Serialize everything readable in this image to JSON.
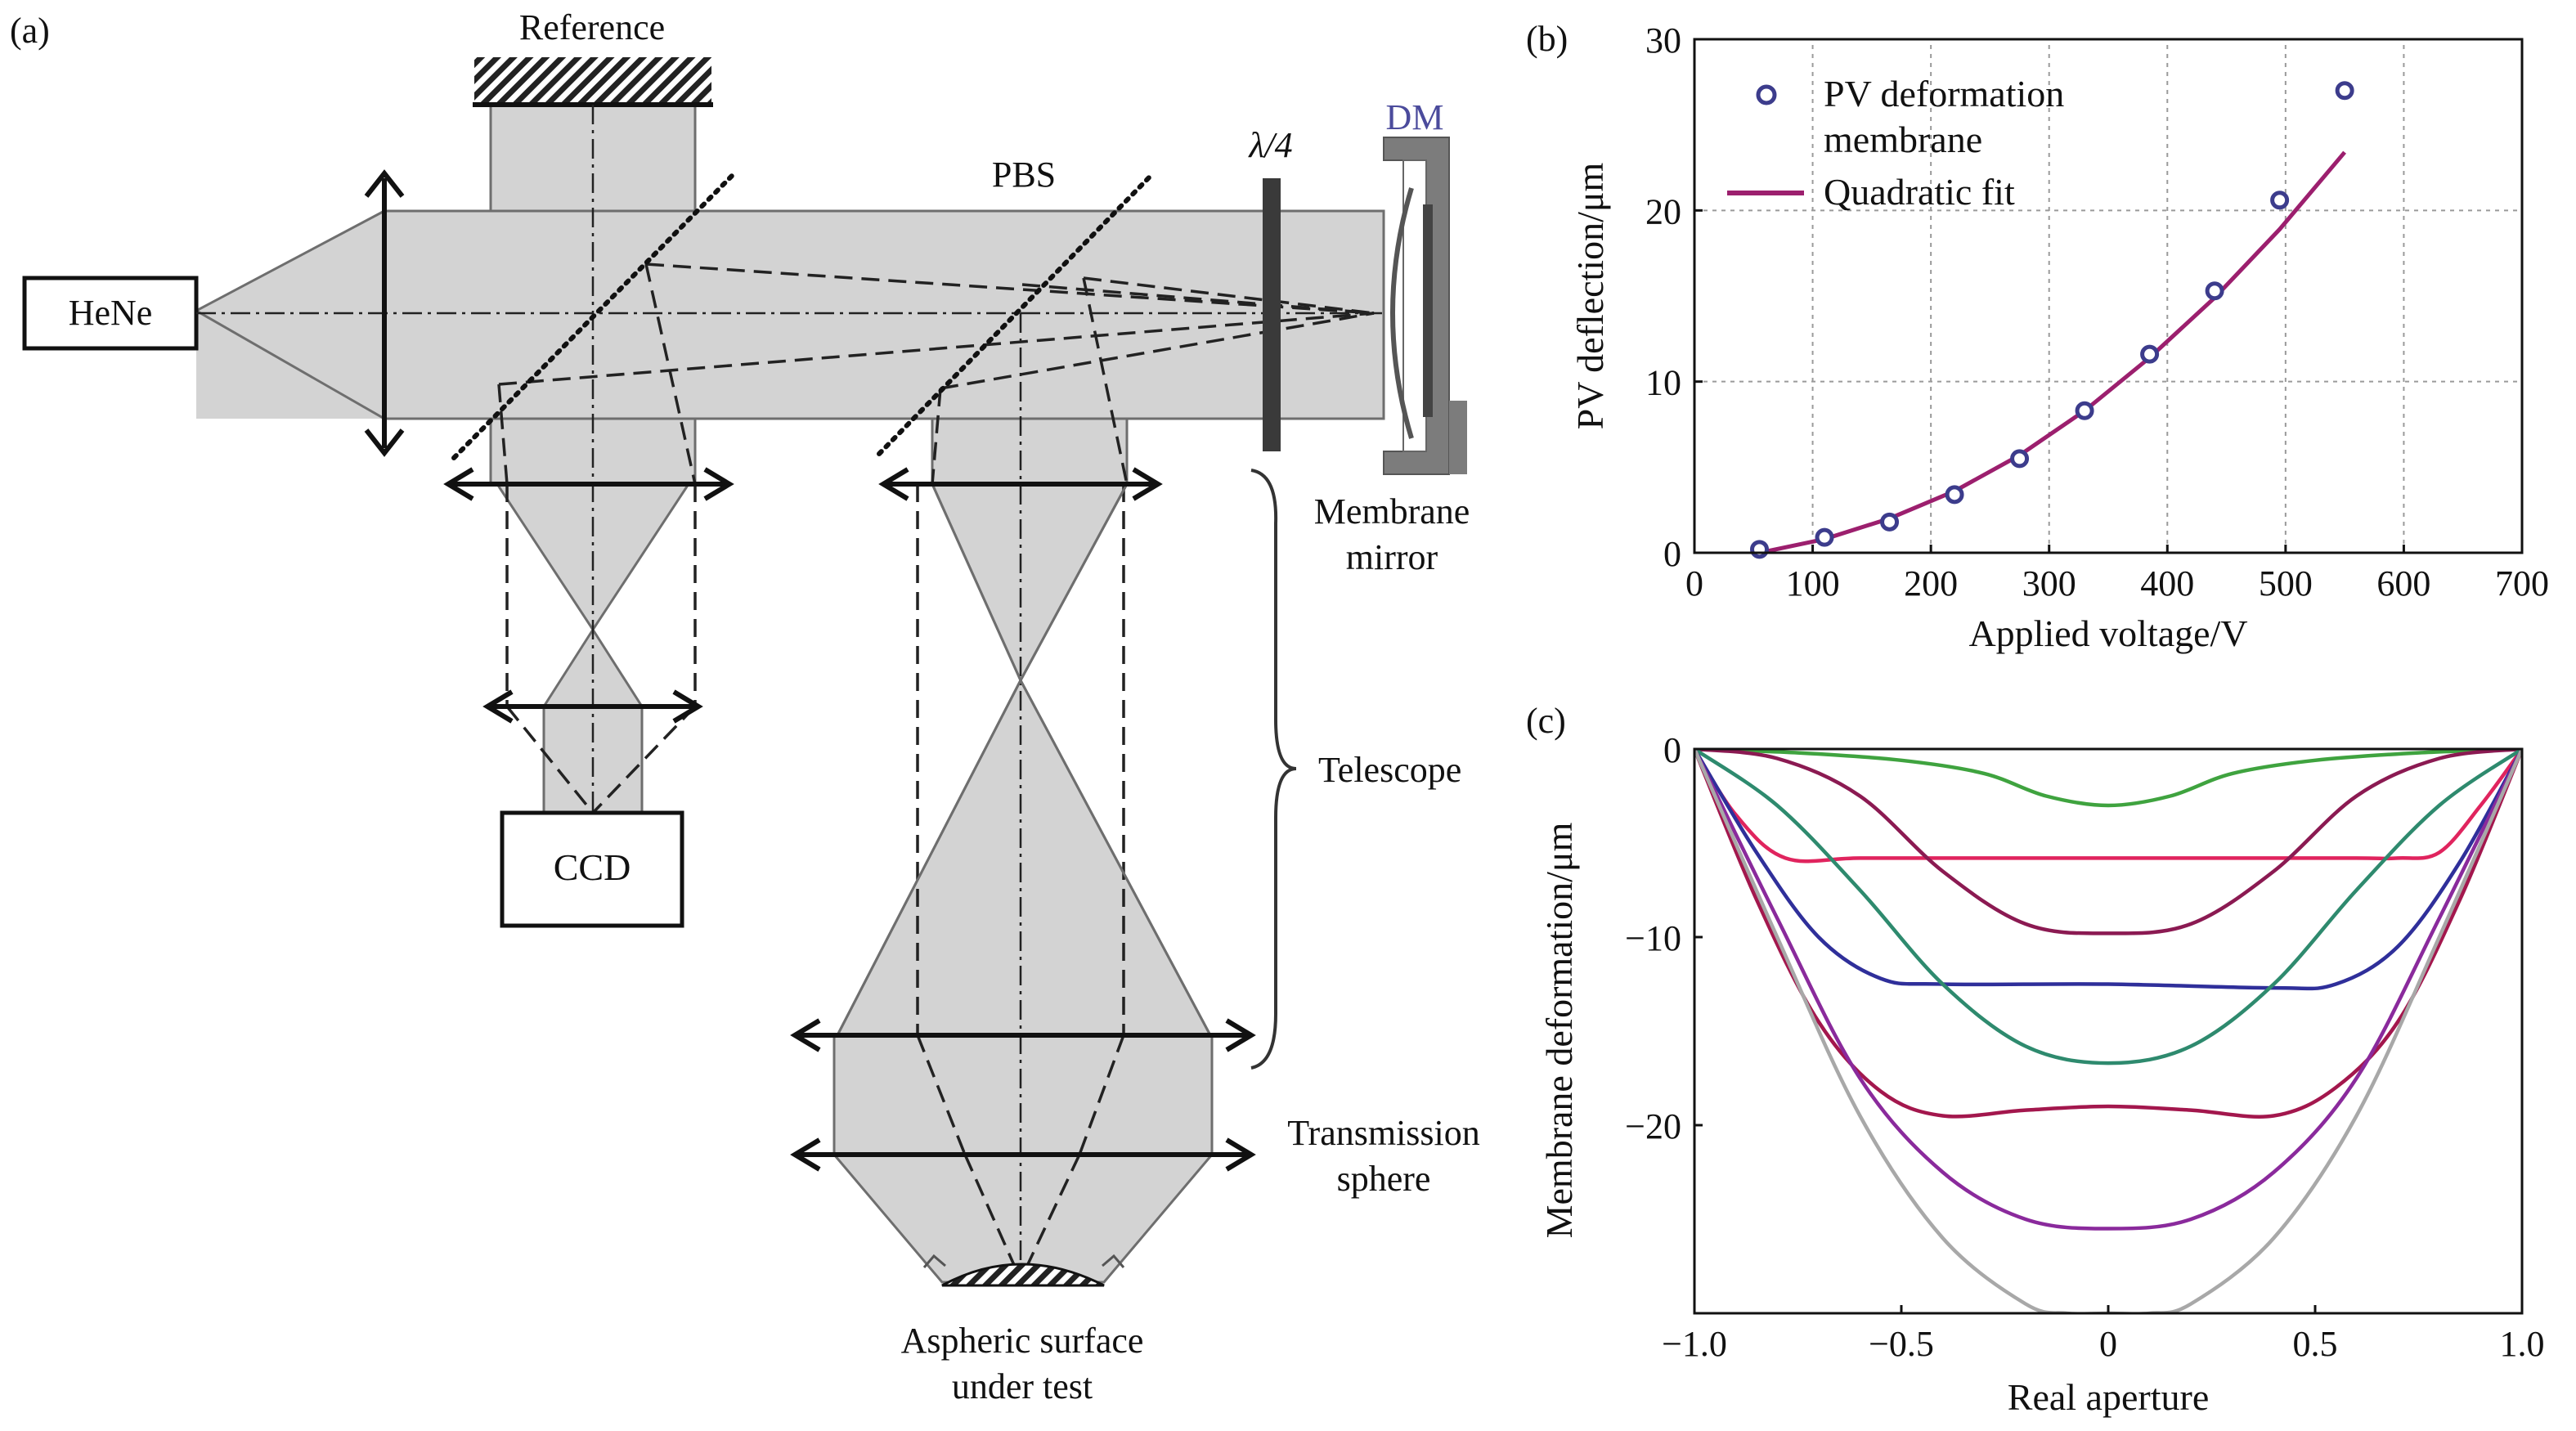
{
  "panel_a": {
    "panel_label": "(a)",
    "reference_label": "Reference",
    "pbs_label": "PBS",
    "quarter_wave_label": "λ/4",
    "dm_label": "DM",
    "laser_label": "HeNe",
    "ccd_label": "CCD",
    "membrane_mirror_label": [
      "Membrane",
      "mirror"
    ],
    "telescope_label": "Telescope",
    "transmission_sphere_label": [
      "Transmission",
      "sphere"
    ],
    "aspheric_label": [
      "Aspheric surface",
      "under test"
    ],
    "colors": {
      "beam_fill": "#d3d3d3",
      "beam_edge": "#6e6e6e",
      "dm_label": "#4b4b9c"
    }
  },
  "chart_data": [
    {
      "panel_label": "(b)",
      "type": "scatter",
      "xlabel": "Applied voltage/V",
      "ylabel": "PV deflection/μm",
      "xlim": [
        0,
        700
      ],
      "ylim": [
        0,
        30
      ],
      "xticks": [
        0,
        100,
        200,
        300,
        400,
        500,
        600,
        700
      ],
      "yticks": [
        0,
        10,
        20,
        30
      ],
      "grid": true,
      "legend_position": "top-left",
      "series": [
        {
          "name": "PV deformation membrane",
          "kind": "markers",
          "color": "#3c3c8c",
          "x": [
            55,
            110,
            165,
            220,
            275,
            330,
            385,
            440,
            495,
            550
          ],
          "y": [
            0.2,
            0.9,
            1.8,
            3.4,
            5.5,
            8.3,
            11.6,
            15.3,
            20.6,
            27.0
          ]
        },
        {
          "name": "Quadratic fit",
          "kind": "line",
          "color": "#9c1f6e",
          "x": [
            55,
            110,
            165,
            220,
            275,
            330,
            385,
            440,
            495,
            550
          ],
          "y": [
            0.0,
            0.8,
            2.0,
            3.6,
            5.7,
            8.3,
            11.4,
            14.9,
            18.9,
            23.4
          ]
        }
      ]
    },
    {
      "panel_label": "(c)",
      "type": "line",
      "xlabel": "Real aperture",
      "ylabel": "Membrane deformation/μm",
      "xlim": [
        -1.0,
        1.0
      ],
      "ylim": [
        -30,
        0
      ],
      "xticks": [
        "−1.0",
        "−0.5",
        "0",
        "0.5",
        "1.0"
      ],
      "xtick_values": [
        -1.0,
        -0.5,
        0,
        0.5,
        1.0
      ],
      "yticks": [
        "0",
        "−10",
        "−20"
      ],
      "ytick_values": [
        0,
        -10,
        -20
      ],
      "grid": false,
      "series": [
        {
          "color": "#3fa33f",
          "x": [
            -1,
            -0.75,
            -0.5,
            -0.3,
            -0.15,
            0,
            0.15,
            0.3,
            0.5,
            0.75,
            1
          ],
          "y": [
            0,
            -0.2,
            -0.6,
            -1.3,
            -2.5,
            -3.0,
            -2.5,
            -1.3,
            -0.6,
            -0.2,
            0
          ]
        },
        {
          "color": "#e0245e",
          "x": [
            -1,
            -0.9,
            -0.78,
            -0.6,
            -0.3,
            0,
            0.3,
            0.6,
            0.7,
            0.8,
            0.9,
            1
          ],
          "y": [
            0,
            -3.5,
            -5.8,
            -5.8,
            -5.8,
            -5.8,
            -5.8,
            -5.8,
            -5.8,
            -5.5,
            -3.0,
            0
          ]
        },
        {
          "color": "#8b1a52",
          "x": [
            -1,
            -0.8,
            -0.6,
            -0.4,
            -0.2,
            0,
            0.2,
            0.4,
            0.6,
            0.8,
            1
          ],
          "y": [
            0,
            -0.5,
            -2.5,
            -6.5,
            -9.3,
            -9.8,
            -9.3,
            -6.5,
            -2.5,
            -0.5,
            0
          ]
        },
        {
          "color": "#2f2f9a",
          "x": [
            -1,
            -0.85,
            -0.7,
            -0.55,
            -0.4,
            0,
            0.4,
            0.55,
            0.7,
            0.85,
            1
          ],
          "y": [
            0,
            -5.5,
            -10.0,
            -12.2,
            -12.5,
            -12.5,
            -12.7,
            -12.5,
            -10.5,
            -6.0,
            0
          ]
        },
        {
          "color": "#2e8a6e",
          "x": [
            -1,
            -0.8,
            -0.6,
            -0.4,
            -0.2,
            0,
            0.2,
            0.4,
            0.6,
            0.8,
            1
          ],
          "y": [
            0,
            -3.0,
            -7.5,
            -12.5,
            -15.8,
            -16.7,
            -15.8,
            -12.5,
            -7.5,
            -3.0,
            0
          ]
        },
        {
          "color": "#a3174d",
          "x": [
            -1,
            -0.85,
            -0.7,
            -0.55,
            -0.4,
            -0.2,
            0,
            0.2,
            0.4,
            0.55,
            0.7,
            0.85,
            1
          ],
          "y": [
            0,
            -8.0,
            -14.5,
            -18.2,
            -19.5,
            -19.2,
            -19.0,
            -19.2,
            -19.5,
            -18.0,
            -14.5,
            -8.0,
            0
          ]
        },
        {
          "color": "#8a2a9c",
          "x": [
            -1,
            -0.8,
            -0.6,
            -0.4,
            -0.2,
            0,
            0.2,
            0.4,
            0.6,
            0.8,
            1
          ],
          "y": [
            0,
            -9.0,
            -17.5,
            -22.5,
            -25.0,
            -25.5,
            -25.0,
            -22.5,
            -17.5,
            -9.0,
            0
          ]
        },
        {
          "color": "#a8a8a8",
          "x": [
            -1,
            -0.8,
            -0.6,
            -0.4,
            -0.2,
            -0.1,
            0,
            0.1,
            0.2,
            0.4,
            0.6,
            0.8,
            1
          ],
          "y": [
            0,
            -10.0,
            -19.5,
            -26.0,
            -29.5,
            -30.0,
            -30.0,
            -30.0,
            -29.5,
            -26.0,
            -19.5,
            -10.0,
            0
          ]
        }
      ]
    }
  ]
}
